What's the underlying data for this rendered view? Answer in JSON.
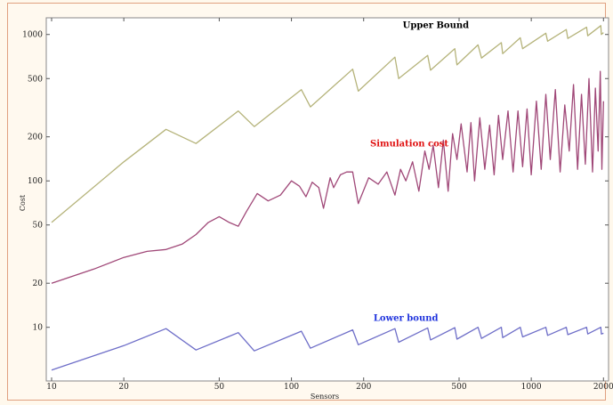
{
  "chart_data": {
    "type": "line",
    "title": "",
    "xlabel": "Sensors",
    "ylabel": "Cost",
    "x_scale": "log",
    "y_scale": "log",
    "xlim": [
      9.5,
      2100
    ],
    "ylim": [
      4.3,
      1300
    ],
    "x_ticks": [
      10,
      20,
      50,
      100,
      200,
      500,
      1000,
      2000
    ],
    "x_tick_labels": [
      "10",
      "20",
      "50",
      "100",
      "200",
      "500",
      "1000",
      "2000"
    ],
    "y_ticks": [
      10,
      20,
      50,
      100,
      200,
      500,
      1000
    ],
    "y_tick_labels": [
      "10",
      "20",
      "50",
      "100",
      "200",
      "500",
      "1000"
    ],
    "grid": false,
    "series": [
      {
        "name": "Upper Bound",
        "color": "#b5b37a",
        "label_color": "#000000",
        "points": [
          [
            10,
            52
          ],
          [
            20,
            135
          ],
          [
            30,
            225
          ],
          [
            40,
            180
          ],
          [
            60,
            300
          ],
          [
            70,
            235
          ],
          [
            110,
            420
          ],
          [
            120,
            320
          ],
          [
            180,
            580
          ],
          [
            190,
            410
          ],
          [
            270,
            700
          ],
          [
            280,
            500
          ],
          [
            370,
            720
          ],
          [
            380,
            570
          ],
          [
            480,
            800
          ],
          [
            490,
            620
          ],
          [
            600,
            850
          ],
          [
            620,
            690
          ],
          [
            750,
            880
          ],
          [
            760,
            740
          ],
          [
            900,
            950
          ],
          [
            920,
            800
          ],
          [
            1150,
            1020
          ],
          [
            1170,
            900
          ],
          [
            1400,
            1080
          ],
          [
            1420,
            940
          ],
          [
            1700,
            1120
          ],
          [
            1720,
            980
          ],
          [
            1950,
            1150
          ],
          [
            1960,
            1000
          ],
          [
            2000,
            1030
          ]
        ]
      },
      {
        "name": "Simulation cost",
        "color": "#a04878",
        "label_color": "#e01010",
        "points": [
          [
            10,
            20
          ],
          [
            15,
            25
          ],
          [
            20,
            30
          ],
          [
            25,
            33
          ],
          [
            30,
            34
          ],
          [
            35,
            37
          ],
          [
            40,
            43
          ],
          [
            45,
            52
          ],
          [
            50,
            57
          ],
          [
            55,
            52
          ],
          [
            60,
            49
          ],
          [
            65,
            62
          ],
          [
            72,
            82
          ],
          [
            80,
            73
          ],
          [
            90,
            80
          ],
          [
            100,
            100
          ],
          [
            108,
            92
          ],
          [
            115,
            78
          ],
          [
            122,
            98
          ],
          [
            130,
            90
          ],
          [
            136,
            65
          ],
          [
            145,
            105
          ],
          [
            150,
            90
          ],
          [
            160,
            110
          ],
          [
            170,
            115
          ],
          [
            180,
            115
          ],
          [
            190,
            70
          ],
          [
            210,
            105
          ],
          [
            230,
            95
          ],
          [
            250,
            115
          ],
          [
            270,
            80
          ],
          [
            285,
            120
          ],
          [
            300,
            100
          ],
          [
            320,
            135
          ],
          [
            340,
            85
          ],
          [
            360,
            160
          ],
          [
            375,
            120
          ],
          [
            390,
            175
          ],
          [
            410,
            90
          ],
          [
            430,
            190
          ],
          [
            450,
            85
          ],
          [
            470,
            210
          ],
          [
            490,
            140
          ],
          [
            510,
            245
          ],
          [
            540,
            115
          ],
          [
            560,
            250
          ],
          [
            580,
            100
          ],
          [
            610,
            270
          ],
          [
            640,
            120
          ],
          [
            670,
            240
          ],
          [
            700,
            110
          ],
          [
            730,
            280
          ],
          [
            760,
            140
          ],
          [
            800,
            300
          ],
          [
            840,
            115
          ],
          [
            880,
            300
          ],
          [
            920,
            125
          ],
          [
            960,
            310
          ],
          [
            1000,
            110
          ],
          [
            1050,
            350
          ],
          [
            1100,
            120
          ],
          [
            1150,
            390
          ],
          [
            1200,
            140
          ],
          [
            1260,
            420
          ],
          [
            1320,
            115
          ],
          [
            1380,
            330
          ],
          [
            1440,
            160
          ],
          [
            1500,
            455
          ],
          [
            1560,
            120
          ],
          [
            1620,
            390
          ],
          [
            1680,
            130
          ],
          [
            1740,
            500
          ],
          [
            1800,
            115
          ],
          [
            1850,
            430
          ],
          [
            1900,
            160
          ],
          [
            1940,
            560
          ],
          [
            1970,
            120
          ],
          [
            2000,
            350
          ]
        ]
      },
      {
        "name": "Lower bound",
        "color": "#6e6ec8",
        "label_color": "#1f33dd",
        "points": [
          [
            10,
            5.1
          ],
          [
            20,
            7.5
          ],
          [
            30,
            9.8
          ],
          [
            40,
            7.0
          ],
          [
            60,
            9.2
          ],
          [
            70,
            6.9
          ],
          [
            110,
            9.4
          ],
          [
            120,
            7.2
          ],
          [
            180,
            9.6
          ],
          [
            190,
            7.6
          ],
          [
            270,
            9.8
          ],
          [
            280,
            7.9
          ],
          [
            370,
            9.9
          ],
          [
            380,
            8.2
          ],
          [
            480,
            9.95
          ],
          [
            490,
            8.3
          ],
          [
            600,
            10.0
          ],
          [
            620,
            8.4
          ],
          [
            750,
            10.0
          ],
          [
            760,
            8.5
          ],
          [
            900,
            10.0
          ],
          [
            920,
            8.6
          ],
          [
            1150,
            10.0
          ],
          [
            1170,
            8.8
          ],
          [
            1400,
            10.0
          ],
          [
            1420,
            8.9
          ],
          [
            1700,
            10.0
          ],
          [
            1720,
            9.0
          ],
          [
            1950,
            10.0
          ],
          [
            1960,
            9.0
          ],
          [
            2000,
            9.1
          ]
        ]
      }
    ]
  }
}
